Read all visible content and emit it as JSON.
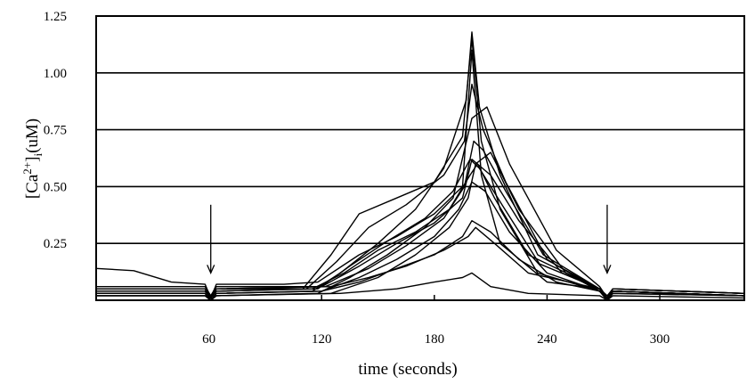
{
  "chart_data": {
    "type": "line",
    "title": "",
    "xlabel": "time (seconds)",
    "ylabel_parts": {
      "base": "[Ca",
      "sup": "2+",
      "bracket": "]",
      "sub": "i",
      "unit": "(uM)"
    },
    "x_ticks": [
      60,
      120,
      180,
      240,
      300
    ],
    "y_tick_labels": [
      "0.25",
      "0.50",
      "0.75",
      "1.00",
      "1.25"
    ],
    "y_ticks": [
      0.25,
      0.5,
      0.75,
      1.0,
      1.25
    ],
    "xlim": [
      0,
      345
    ],
    "ylim": [
      0,
      1.25
    ],
    "grid": {
      "horizontal": true,
      "vertical": false
    },
    "legend": "none",
    "line_color": "#000000",
    "annotations": [
      {
        "type": "arrow-down",
        "x": 61,
        "y_from": 0.42,
        "y_to": 0.12
      },
      {
        "type": "arrow-down",
        "x": 272,
        "y_from": 0.42,
        "y_to": 0.12
      }
    ],
    "series": [
      {
        "values": [
          [
            0,
            0.14
          ],
          [
            20,
            0.13
          ],
          [
            40,
            0.08
          ],
          [
            58,
            0.07
          ],
          [
            61,
            0.01
          ],
          [
            64,
            0.07
          ],
          [
            100,
            0.07
          ],
          [
            118,
            0.08
          ],
          [
            140,
            0.2
          ],
          [
            160,
            0.28
          ],
          [
            180,
            0.38
          ],
          [
            195,
            0.5
          ],
          [
            200,
            1.1
          ],
          [
            205,
            0.55
          ],
          [
            215,
            0.25
          ],
          [
            240,
            0.08
          ],
          [
            268,
            0.05
          ],
          [
            272,
            0.01
          ],
          [
            275,
            0.05
          ],
          [
            345,
            0.03
          ]
        ]
      },
      {
        "values": [
          [
            0,
            0.05
          ],
          [
            58,
            0.05
          ],
          [
            61,
            0.01
          ],
          [
            64,
            0.05
          ],
          [
            110,
            0.05
          ],
          [
            125,
            0.2
          ],
          [
            140,
            0.38
          ],
          [
            160,
            0.45
          ],
          [
            180,
            0.52
          ],
          [
            195,
            0.72
          ],
          [
            200,
            1.15
          ],
          [
            205,
            0.7
          ],
          [
            215,
            0.4
          ],
          [
            235,
            0.12
          ],
          [
            268,
            0.04
          ],
          [
            272,
            0.01
          ],
          [
            275,
            0.04
          ],
          [
            345,
            0.02
          ]
        ]
      },
      {
        "values": [
          [
            0,
            0.03
          ],
          [
            58,
            0.03
          ],
          [
            61,
            0.0
          ],
          [
            64,
            0.03
          ],
          [
            115,
            0.04
          ],
          [
            130,
            0.12
          ],
          [
            150,
            0.25
          ],
          [
            170,
            0.4
          ],
          [
            185,
            0.58
          ],
          [
            197,
            0.88
          ],
          [
            200,
            1.18
          ],
          [
            204,
            0.85
          ],
          [
            215,
            0.55
          ],
          [
            235,
            0.2
          ],
          [
            268,
            0.05
          ],
          [
            272,
            0.0
          ],
          [
            275,
            0.04
          ],
          [
            345,
            0.02
          ]
        ]
      },
      {
        "values": [
          [
            0,
            0.04
          ],
          [
            58,
            0.04
          ],
          [
            61,
            0.01
          ],
          [
            64,
            0.04
          ],
          [
            112,
            0.05
          ],
          [
            128,
            0.17
          ],
          [
            145,
            0.32
          ],
          [
            165,
            0.42
          ],
          [
            185,
            0.55
          ],
          [
            196,
            0.7
          ],
          [
            200,
            0.95
          ],
          [
            206,
            0.75
          ],
          [
            218,
            0.52
          ],
          [
            240,
            0.18
          ],
          [
            268,
            0.04
          ],
          [
            272,
            0.01
          ],
          [
            275,
            0.04
          ],
          [
            345,
            0.02
          ]
        ]
      },
      {
        "values": [
          [
            0,
            0.06
          ],
          [
            58,
            0.06
          ],
          [
            61,
            0.02
          ],
          [
            64,
            0.06
          ],
          [
            120,
            0.06
          ],
          [
            140,
            0.15
          ],
          [
            160,
            0.25
          ],
          [
            180,
            0.34
          ],
          [
            195,
            0.45
          ],
          [
            200,
            0.62
          ],
          [
            210,
            0.55
          ],
          [
            225,
            0.35
          ],
          [
            248,
            0.12
          ],
          [
            268,
            0.05
          ],
          [
            272,
            0.02
          ],
          [
            275,
            0.05
          ],
          [
            345,
            0.03
          ]
        ]
      },
      {
        "values": [
          [
            0,
            0.02
          ],
          [
            58,
            0.02
          ],
          [
            61,
            0.0
          ],
          [
            64,
            0.02
          ],
          [
            118,
            0.03
          ],
          [
            135,
            0.1
          ],
          [
            155,
            0.2
          ],
          [
            175,
            0.32
          ],
          [
            190,
            0.45
          ],
          [
            200,
            0.8
          ],
          [
            208,
            0.85
          ],
          [
            220,
            0.6
          ],
          [
            245,
            0.22
          ],
          [
            268,
            0.06
          ],
          [
            272,
            0.01
          ],
          [
            275,
            0.04
          ],
          [
            345,
            0.02
          ]
        ]
      },
      {
        "values": [
          [
            0,
            0.04
          ],
          [
            58,
            0.04
          ],
          [
            61,
            0.01
          ],
          [
            64,
            0.04
          ],
          [
            115,
            0.05
          ],
          [
            132,
            0.12
          ],
          [
            150,
            0.22
          ],
          [
            170,
            0.3
          ],
          [
            188,
            0.4
          ],
          [
            199,
            0.55
          ],
          [
            203,
            0.6
          ],
          [
            212,
            0.45
          ],
          [
            230,
            0.2
          ],
          [
            268,
            0.05
          ],
          [
            272,
            0.01
          ],
          [
            275,
            0.04
          ],
          [
            345,
            0.02
          ]
        ]
      },
      {
        "values": [
          [
            0,
            0.03
          ],
          [
            58,
            0.03
          ],
          [
            61,
            0.0
          ],
          [
            64,
            0.03
          ],
          [
            120,
            0.04
          ],
          [
            140,
            0.1
          ],
          [
            160,
            0.18
          ],
          [
            180,
            0.28
          ],
          [
            193,
            0.4
          ],
          [
            200,
            0.52
          ],
          [
            207,
            0.48
          ],
          [
            220,
            0.3
          ],
          [
            240,
            0.12
          ],
          [
            268,
            0.04
          ],
          [
            272,
            0.0
          ],
          [
            275,
            0.04
          ],
          [
            345,
            0.02
          ]
        ]
      },
      {
        "values": [
          [
            0,
            0.05
          ],
          [
            58,
            0.05
          ],
          [
            61,
            0.01
          ],
          [
            64,
            0.05
          ],
          [
            122,
            0.06
          ],
          [
            145,
            0.14
          ],
          [
            165,
            0.24
          ],
          [
            185,
            0.36
          ],
          [
            196,
            0.5
          ],
          [
            201,
            0.7
          ],
          [
            206,
            0.66
          ],
          [
            218,
            0.48
          ],
          [
            238,
            0.2
          ],
          [
            268,
            0.05
          ],
          [
            272,
            0.01
          ],
          [
            275,
            0.05
          ],
          [
            345,
            0.03
          ]
        ]
      },
      {
        "values": [
          [
            0,
            0.02
          ],
          [
            58,
            0.02
          ],
          [
            61,
            0.0
          ],
          [
            64,
            0.02
          ],
          [
            125,
            0.03
          ],
          [
            150,
            0.1
          ],
          [
            170,
            0.2
          ],
          [
            188,
            0.32
          ],
          [
            198,
            0.45
          ],
          [
            202,
            0.6
          ],
          [
            210,
            0.65
          ],
          [
            225,
            0.4
          ],
          [
            250,
            0.12
          ],
          [
            268,
            0.04
          ],
          [
            272,
            0.0
          ],
          [
            275,
            0.03
          ],
          [
            345,
            0.02
          ]
        ]
      },
      {
        "values": [
          [
            0,
            0.04
          ],
          [
            58,
            0.04
          ],
          [
            61,
            0.01
          ],
          [
            64,
            0.04
          ],
          [
            118,
            0.05
          ],
          [
            135,
            0.15
          ],
          [
            155,
            0.26
          ],
          [
            175,
            0.36
          ],
          [
            190,
            0.48
          ],
          [
            199,
            0.62
          ],
          [
            204,
            0.58
          ],
          [
            216,
            0.42
          ],
          [
            236,
            0.16
          ],
          [
            268,
            0.05
          ],
          [
            272,
            0.01
          ],
          [
            275,
            0.04
          ],
          [
            345,
            0.02
          ]
        ]
      },
      {
        "values": [
          [
            0,
            0.03
          ],
          [
            58,
            0.03
          ],
          [
            61,
            0.0
          ],
          [
            64,
            0.03
          ],
          [
            120,
            0.04
          ],
          [
            140,
            0.08
          ],
          [
            160,
            0.14
          ],
          [
            180,
            0.2
          ],
          [
            195,
            0.28
          ],
          [
            200,
            0.35
          ],
          [
            210,
            0.3
          ],
          [
            225,
            0.18
          ],
          [
            245,
            0.08
          ],
          [
            268,
            0.04
          ],
          [
            272,
            0.0
          ],
          [
            275,
            0.03
          ],
          [
            345,
            0.02
          ]
        ]
      },
      {
        "values": [
          [
            0,
            0.05
          ],
          [
            58,
            0.05
          ],
          [
            61,
            0.01
          ],
          [
            64,
            0.05
          ],
          [
            125,
            0.06
          ],
          [
            145,
            0.1
          ],
          [
            165,
            0.15
          ],
          [
            185,
            0.22
          ],
          [
            198,
            0.28
          ],
          [
            202,
            0.32
          ],
          [
            212,
            0.25
          ],
          [
            230,
            0.12
          ],
          [
            268,
            0.05
          ],
          [
            272,
            0.01
          ],
          [
            275,
            0.05
          ],
          [
            345,
            0.03
          ]
        ]
      },
      {
        "values": [
          [
            0,
            0.02
          ],
          [
            58,
            0.02
          ],
          [
            61,
            0.0
          ],
          [
            64,
            0.02
          ],
          [
            130,
            0.03
          ],
          [
            160,
            0.05
          ],
          [
            180,
            0.08
          ],
          [
            195,
            0.1
          ],
          [
            200,
            0.12
          ],
          [
            210,
            0.06
          ],
          [
            230,
            0.03
          ],
          [
            268,
            0.02
          ],
          [
            272,
            0.0
          ],
          [
            275,
            0.02
          ],
          [
            345,
            0.01
          ]
        ]
      }
    ]
  }
}
